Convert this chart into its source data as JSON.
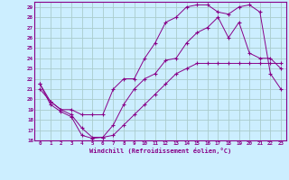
{
  "xlabel": "Windchill (Refroidissement éolien,°C)",
  "background_color": "#cceeff",
  "grid_color": "#aacccc",
  "line_color": "#880088",
  "xlim": [
    -0.5,
    23.5
  ],
  "ylim": [
    16,
    29.5
  ],
  "yticks": [
    16,
    17,
    18,
    19,
    20,
    21,
    22,
    23,
    24,
    25,
    26,
    27,
    28,
    29
  ],
  "xticks": [
    0,
    1,
    2,
    3,
    4,
    5,
    6,
    7,
    8,
    9,
    10,
    11,
    12,
    13,
    14,
    15,
    16,
    17,
    18,
    19,
    20,
    21,
    22,
    23
  ],
  "line1_x": [
    0,
    1,
    2,
    3,
    4,
    5,
    6,
    7,
    8,
    9,
    10,
    11,
    12,
    13,
    14,
    15,
    16,
    17,
    18,
    19,
    20,
    21,
    22,
    23
  ],
  "line1_y": [
    21.0,
    19.8,
    19.0,
    18.5,
    17.2,
    16.3,
    16.3,
    16.5,
    17.5,
    18.5,
    19.5,
    20.5,
    21.5,
    22.5,
    23.0,
    23.5,
    23.5,
    23.5,
    23.5,
    23.5,
    23.5,
    23.5,
    23.5,
    23.5
  ],
  "line2_x": [
    0,
    1,
    2,
    3,
    4,
    5,
    6,
    7,
    8,
    9,
    10,
    11,
    12,
    13,
    14,
    15,
    16,
    17,
    18,
    19,
    20,
    21,
    22,
    23
  ],
  "line2_y": [
    21.5,
    19.5,
    18.8,
    18.3,
    16.5,
    16.2,
    16.3,
    17.5,
    19.5,
    21.0,
    22.0,
    22.5,
    23.8,
    24.0,
    25.5,
    26.5,
    27.0,
    28.0,
    26.0,
    27.5,
    24.5,
    24.0,
    24.0,
    23.0
  ],
  "line3_x": [
    0,
    1,
    2,
    3,
    4,
    5,
    6,
    7,
    8,
    9,
    10,
    11,
    12,
    13,
    14,
    15,
    16,
    17,
    18,
    19,
    20,
    21,
    22,
    23
  ],
  "line3_y": [
    21.5,
    19.8,
    19.0,
    19.0,
    18.5,
    18.5,
    18.5,
    21.0,
    22.0,
    22.0,
    24.0,
    25.5,
    27.5,
    28.0,
    29.0,
    29.2,
    29.2,
    28.5,
    28.3,
    29.0,
    29.2,
    28.5,
    22.5,
    21.0
  ]
}
